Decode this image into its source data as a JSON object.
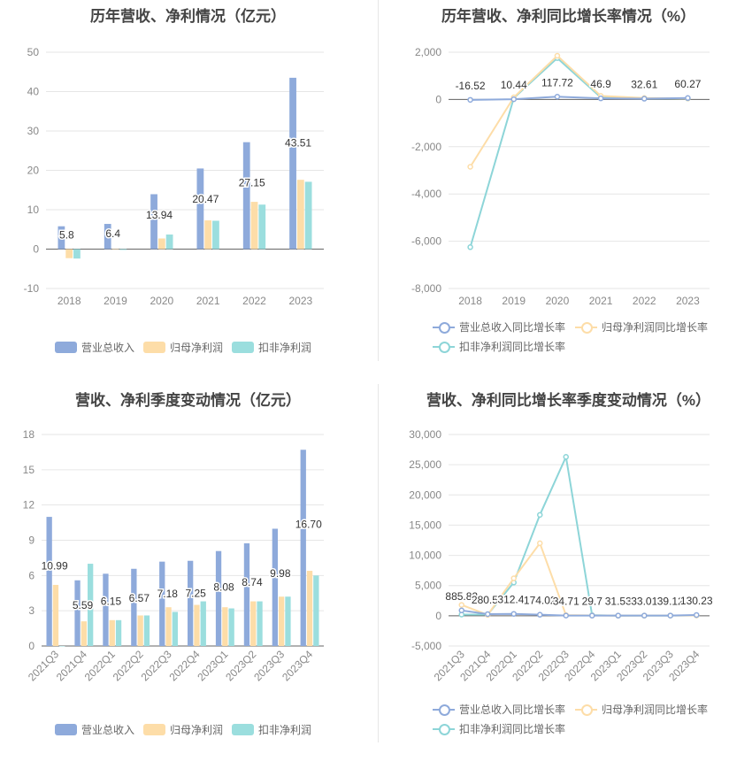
{
  "colors": {
    "revenue": "#8eaadb",
    "netprofit": "#fddda8",
    "deducted": "#9bdede",
    "line_revenue": "#8eaadb",
    "line_netprofit": "#fddda8",
    "line_deducted": "#8dd5d8"
  },
  "charts": [
    {
      "title": "历年营收、净利情况（亿元）",
      "legend": [
        "营业总收入",
        "归母净利润",
        "扣非净利润"
      ]
    },
    {
      "title": "历年营收、净利同比增长率情况（%）",
      "legend": [
        "营业总收入同比增长率",
        "归母净利润同比增长率",
        "扣非净利润同比增长率"
      ]
    },
    {
      "title": "营收、净利季度变动情况（亿元）",
      "legend": [
        "营业总收入",
        "归母净利润",
        "扣非净利润"
      ]
    },
    {
      "title": "营收、净利同比增长率季度变动情况（%）",
      "legend": [
        "营业总收入同比增长率",
        "归母净利润同比增长率",
        "扣非净利润同比增长率"
      ]
    }
  ],
  "chart_data": [
    {
      "type": "bar",
      "title": "历年营收、净利情况（亿元）",
      "categories": [
        "2018",
        "2019",
        "2020",
        "2021",
        "2022",
        "2023"
      ],
      "ylim": [
        -10,
        50
      ],
      "yticks": [
        -10,
        0,
        10,
        20,
        30,
        40,
        50
      ],
      "grid": true,
      "legend_position": "bottom",
      "series": [
        {
          "name": "营业总收入",
          "values": [
            5.8,
            6.4,
            13.94,
            20.47,
            27.15,
            43.51
          ],
          "labels": [
            "5.8",
            "6.4",
            "13.94",
            "20.47",
            "27.15",
            "43.51"
          ]
        },
        {
          "name": "归母净利润",
          "values": [
            -2.3,
            -0.1,
            2.7,
            7.3,
            12.0,
            17.6
          ]
        },
        {
          "name": "扣非净利润",
          "values": [
            -2.4,
            -0.2,
            3.7,
            7.2,
            11.3,
            17.1
          ]
        }
      ]
    },
    {
      "type": "line",
      "title": "历年营收、净利同比增长率情况（%）",
      "categories": [
        "2018",
        "2019",
        "2020",
        "2021",
        "2022",
        "2023"
      ],
      "ylim": [
        -8000,
        2000
      ],
      "yticks": [
        -8000,
        -6000,
        -4000,
        -2000,
        0,
        2000
      ],
      "ytick_labels": [
        "-8,000",
        "-6,000",
        "-4,000",
        "-2,000",
        "0",
        "2,000"
      ],
      "grid": true,
      "legend_position": "bottom",
      "series": [
        {
          "name": "营业总收入同比增长率",
          "values": [
            -16.52,
            10.44,
            117.72,
            46.9,
            32.61,
            60.27
          ],
          "labels": [
            "-16.52",
            "10.44",
            "117.72",
            "46.9",
            "32.61",
            "60.27"
          ]
        },
        {
          "name": "归母净利润同比增长率",
          "values": [
            -2850,
            90,
            1850,
            150,
            60,
            45
          ]
        },
        {
          "name": "扣非净利润同比增长率",
          "values": [
            -6250,
            60,
            1750,
            90,
            45,
            40
          ]
        }
      ]
    },
    {
      "type": "bar",
      "title": "营收、净利季度变动情况（亿元）",
      "categories": [
        "2021Q3",
        "2021Q4",
        "2022Q1",
        "2022Q2",
        "2022Q3",
        "2022Q4",
        "2023Q1",
        "2023Q2",
        "2023Q3",
        "2023Q4"
      ],
      "ylim": [
        0,
        18
      ],
      "yticks": [
        0,
        3,
        6,
        9,
        12,
        15,
        18
      ],
      "grid": true,
      "legend_position": "bottom",
      "series": [
        {
          "name": "营业总收入",
          "values": [
            10.99,
            5.59,
            6.15,
            6.57,
            7.18,
            7.25,
            8.08,
            8.74,
            9.98,
            16.7
          ],
          "labels": [
            "10.99",
            "5.59",
            "6.15",
            "6.57",
            "7.18",
            "7.25",
            "8.08",
            "8.74",
            "9.98",
            "16.70"
          ]
        },
        {
          "name": "归母净利润",
          "values": [
            5.2,
            2.1,
            2.2,
            2.6,
            3.3,
            3.5,
            3.3,
            3.8,
            4.2,
            6.4
          ]
        },
        {
          "name": "扣非净利润",
          "values": [
            0,
            7.0,
            2.2,
            2.6,
            2.9,
            3.8,
            3.2,
            3.8,
            4.2,
            6.0
          ]
        }
      ]
    },
    {
      "type": "line",
      "title": "营收、净利同比增长率季度变动情况（%）",
      "categories": [
        "2021Q3",
        "2021Q4",
        "2022Q1",
        "2022Q2",
        "2022Q3",
        "2022Q4",
        "2023Q1",
        "2023Q2",
        "2023Q3",
        "2023Q4"
      ],
      "ylim": [
        -5000,
        30000
      ],
      "yticks": [
        -5000,
        0,
        5000,
        10000,
        15000,
        20000,
        25000,
        30000
      ],
      "ytick_labels": [
        "-5,000",
        "0",
        "5,000",
        "10,000",
        "15,000",
        "20,000",
        "25,000",
        "30,000"
      ],
      "grid": true,
      "legend_position": "bottom",
      "series": [
        {
          "name": "营业总收入同比增长率",
          "values": [
            885.82,
            280.54,
            312.41,
            174.02,
            34.71,
            29.7,
            31.53,
            33.01,
            39.12,
            130.23
          ],
          "labels": [
            "885.82",
            "280.54",
            "312.41",
            "174.02",
            "34.71",
            "29.7",
            "31.53",
            "33.01",
            "39.12",
            "130.23"
          ]
        },
        {
          "name": "归母净利润同比增长率",
          "values": [
            1800,
            150,
            6200,
            12000,
            100,
            50,
            20,
            30,
            40,
            60
          ]
        },
        {
          "name": "扣非净利润同比增长率",
          "values": [
            200,
            200,
            5500,
            16700,
            26300,
            100,
            20,
            30,
            40,
            60
          ]
        }
      ]
    }
  ]
}
